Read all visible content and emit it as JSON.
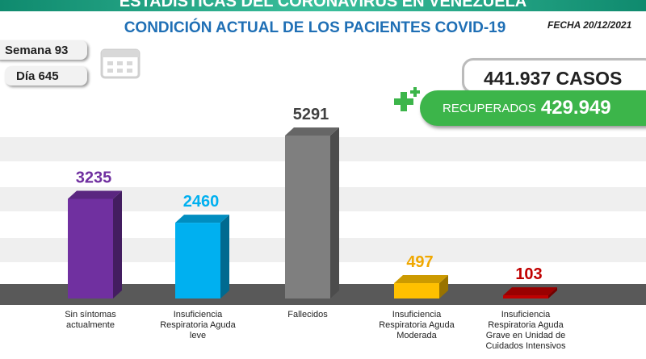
{
  "header": {
    "banner": "ESTADÍSTICAS DEL CORONAVIRUS EN VENEZUELA",
    "date": "FECHA 20/12/2021"
  },
  "info": {
    "week": "Semana 93",
    "day": "Día 645",
    "cases": "441.937 CASOS",
    "recovered_label": "RECUPERADOS",
    "recovered_value": "429.949"
  },
  "chart_data": {
    "type": "bar3d",
    "title": "CONDICIÓN ACTUAL DE LOS PACIENTES COVID-19",
    "categories": [
      "Sin síntomas actualmente",
      "Insuficiencia Respiratoria Aguda leve",
      "Fallecidos",
      "Insuficiencia Respiratoria Aguda Moderada",
      "Insuficiencia Respiratoria Aguda Grave en Unidad de Cuidados Intensivos"
    ],
    "values": [
      3235,
      2460,
      5291,
      497,
      103
    ],
    "colors": [
      "#7030a0",
      "#00b0f0",
      "#7f7f7f",
      "#ffc000",
      "#c00000"
    ],
    "label_colors": [
      "#7030a0",
      "#00b0f0",
      "#404040",
      "#f0a800",
      "#c00000"
    ]
  }
}
